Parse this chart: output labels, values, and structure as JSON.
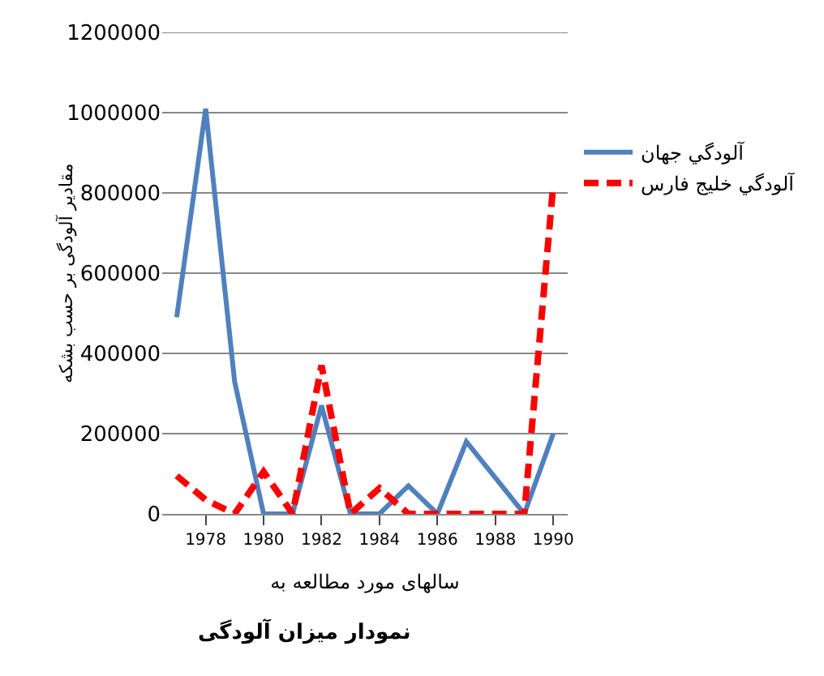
{
  "chart_data": {
    "type": "line",
    "ylabel": "مقادیر آلودگی بر حسب بشکه",
    "xlabel": "سالهای مورد مطالعه به",
    "categories": [
      null,
      "1978",
      null,
      "1980",
      null,
      "1982",
      null,
      "1984",
      null,
      "1986",
      null,
      "1988",
      null,
      "1990"
    ],
    "series": [
      {
        "name": "آلودگي جهان",
        "color": "#4f81bd",
        "line_style": "solid",
        "values": [
          490000,
          1010000,
          330000,
          0,
          0,
          270000,
          0,
          0,
          70000,
          0,
          180000,
          90000,
          0,
          200000
        ]
      },
      {
        "name": "آلودگي خليج فارس",
        "color": "#ff0000",
        "line_style": "dashed",
        "values": [
          95000,
          35000,
          0,
          105000,
          0,
          370000,
          0,
          64000,
          0,
          0,
          0,
          0,
          0,
          820000
        ]
      }
    ],
    "ylim": [
      0,
      1200000
    ],
    "yticks": [
      0,
      200000,
      400000,
      600000,
      800000,
      1000000,
      1200000
    ],
    "grid": "y",
    "legend": "right",
    "marker": "none",
    "annotations": [
      "نمودار میزان آلودگی"
    ]
  }
}
